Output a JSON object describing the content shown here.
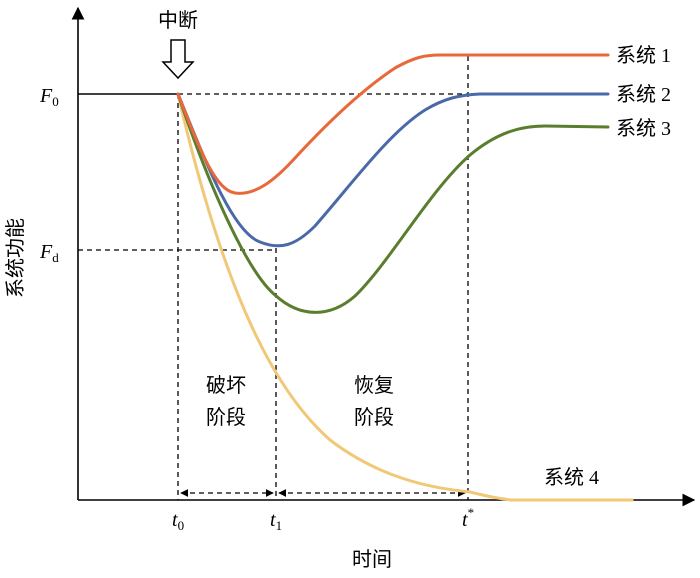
{
  "labels": {
    "interrupt": "中断",
    "y_axis": "系统功能",
    "x_axis": "时间",
    "destroy_line1": "破坏",
    "destroy_line2": "阶段",
    "recover_line1": "恢复",
    "recover_line2": "阶段"
  },
  "y_ticks": {
    "f0_main": "F",
    "f0_sub": "0",
    "fd_main": "F",
    "fd_sub": "d"
  },
  "x_ticks": {
    "t0_main": "t",
    "t0_sub": "0",
    "t1_main": "t",
    "t1_sub": "1",
    "tstar_main": "t",
    "tstar_sup": "*"
  },
  "series": [
    {
      "name": "系统 1",
      "color": "#e8683a"
    },
    {
      "name": "系统 2",
      "color": "#4a69a8"
    },
    {
      "name": "系统 3",
      "color": "#5a7d2e"
    },
    {
      "name": "系统 4",
      "color": "#f0c878"
    }
  ],
  "colors": {
    "axis": "#000000",
    "background": "#ffffff"
  }
}
